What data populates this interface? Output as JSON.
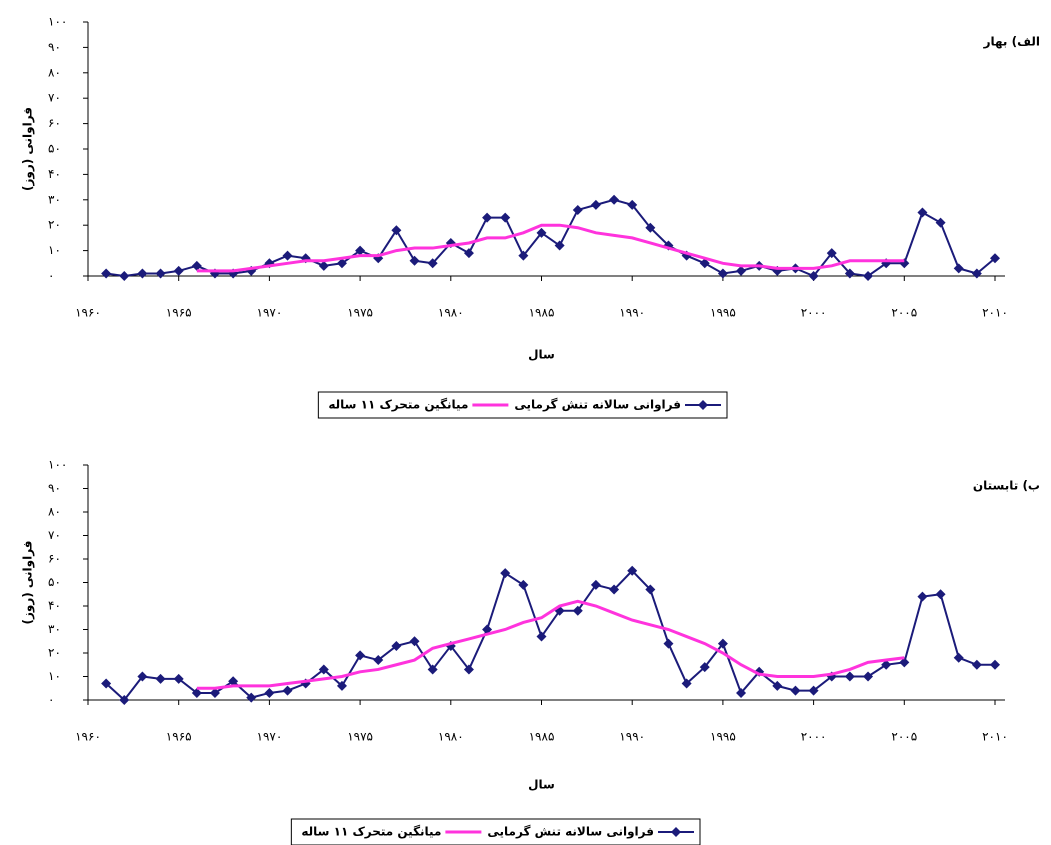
{
  "chart_data": [
    {
      "type": "line",
      "title": "الف) بهار",
      "x_label": "سال",
      "y_label": "فراوانی (روز)",
      "x": [
        1961,
        1962,
        1963,
        1964,
        1965,
        1966,
        1967,
        1968,
        1969,
        1970,
        1971,
        1972,
        1973,
        1974,
        1975,
        1976,
        1977,
        1978,
        1979,
        1980,
        1981,
        1982,
        1983,
        1984,
        1985,
        1986,
        1987,
        1988,
        1989,
        1990,
        1991,
        1992,
        1993,
        1994,
        1995,
        1996,
        1997,
        1998,
        1999,
        2000,
        2001,
        2002,
        2003,
        2004,
        2005,
        2006,
        2007,
        2008,
        2009,
        2010
      ],
      "series": [
        {
          "name": "فراوانی سالانه تنش گرمایی",
          "color": "#1b1b7a",
          "marker": "diamond",
          "values": [
            1,
            0,
            1,
            1,
            2,
            4,
            1,
            1,
            2,
            5,
            8,
            7,
            4,
            5,
            10,
            7,
            18,
            6,
            5,
            13,
            9,
            23,
            23,
            8,
            17,
            12,
            26,
            28,
            30,
            28,
            19,
            12,
            8,
            5,
            1,
            2,
            4,
            2,
            3,
            0,
            9,
            1,
            0,
            5,
            5,
            25,
            21,
            3,
            1,
            7
          ]
        },
        {
          "name": "میانگین متحرک ۱۱ ساله",
          "color": "#ff33dd",
          "values": [
            null,
            null,
            null,
            null,
            null,
            2,
            2,
            2,
            3,
            4,
            5,
            6,
            6,
            7,
            8,
            8,
            10,
            11,
            11,
            12,
            13,
            15,
            15,
            17,
            20,
            20,
            19,
            17,
            16,
            15,
            13,
            11,
            9,
            7,
            5,
            4,
            4,
            3,
            3,
            3,
            4,
            6,
            6,
            6,
            6,
            null,
            null,
            null,
            null,
            null
          ]
        }
      ],
      "xlim": [
        1960,
        2010
      ],
      "xticks": [
        {
          "value": 1960,
          "label": "۱۹۶۰"
        },
        {
          "value": 1965,
          "label": "۱۹۶۵"
        },
        {
          "value": 1970,
          "label": "۱۹۷۰"
        },
        {
          "value": 1975,
          "label": "۱۹۷۵"
        },
        {
          "value": 1980,
          "label": "۱۹۸۰"
        },
        {
          "value": 1985,
          "label": "۱۹۸۵"
        },
        {
          "value": 1990,
          "label": "۱۹۹۰"
        },
        {
          "value": 1995,
          "label": "۱۹۹۵"
        },
        {
          "value": 2000,
          "label": "۲۰۰۰"
        },
        {
          "value": 2005,
          "label": "۲۰۰۵"
        },
        {
          "value": 2010,
          "label": "۲۰۱۰"
        }
      ],
      "ylim": [
        0,
        100
      ],
      "yticks": [
        {
          "value": 0,
          "label": "۰"
        },
        {
          "value": 10,
          "label": "۱۰"
        },
        {
          "value": 20,
          "label": "۲۰"
        },
        {
          "value": 30,
          "label": "۳۰"
        },
        {
          "value": 40,
          "label": "۴۰"
        },
        {
          "value": 50,
          "label": "۵۰"
        },
        {
          "value": 60,
          "label": "۶۰"
        },
        {
          "value": 70,
          "label": "۷۰"
        },
        {
          "value": 80,
          "label": "۸۰"
        },
        {
          "value": 90,
          "label": "۹۰"
        },
        {
          "value": 100,
          "label": "۱۰۰"
        }
      ]
    },
    {
      "type": "line",
      "title": "ب) تابستان",
      "x_label": "سال",
      "y_label": "فراوانی (روز)",
      "x": [
        1961,
        1962,
        1963,
        1964,
        1965,
        1966,
        1967,
        1968,
        1969,
        1970,
        1971,
        1972,
        1973,
        1974,
        1975,
        1976,
        1977,
        1978,
        1979,
        1980,
        1981,
        1982,
        1983,
        1984,
        1985,
        1986,
        1987,
        1988,
        1989,
        1990,
        1991,
        1992,
        1993,
        1994,
        1995,
        1996,
        1997,
        1998,
        1999,
        2000,
        2001,
        2002,
        2003,
        2004,
        2005,
        2006,
        2007,
        2008,
        2009,
        2010
      ],
      "series": [
        {
          "name": "فراوانی سالانه تنش گرمایی",
          "color": "#1b1b7a",
          "marker": "diamond",
          "values": [
            7,
            0,
            10,
            9,
            9,
            3,
            3,
            8,
            1,
            3,
            4,
            7,
            13,
            6,
            19,
            17,
            23,
            25,
            13,
            23,
            13,
            30,
            54,
            49,
            27,
            38,
            38,
            49,
            47,
            55,
            47,
            24,
            7,
            14,
            24,
            3,
            12,
            6,
            4,
            4,
            10,
            10,
            10,
            15,
            16,
            44,
            45,
            18,
            15,
            15
          ]
        },
        {
          "name": "میانگین متحرک ۱۱ ساله",
          "color": "#ff33dd",
          "values": [
            null,
            null,
            null,
            null,
            null,
            5,
            5,
            6,
            6,
            6,
            7,
            8,
            9,
            10,
            12,
            13,
            15,
            17,
            22,
            24,
            26,
            28,
            30,
            33,
            35,
            40,
            42,
            40,
            37,
            34,
            32,
            30,
            27,
            24,
            20,
            15,
            11,
            10,
            10,
            10,
            11,
            13,
            16,
            17,
            18,
            null,
            null,
            null,
            null,
            null
          ]
        }
      ],
      "xlim": [
        1960,
        2010
      ],
      "xticks": [
        {
          "value": 1960,
          "label": "۱۹۶۰"
        },
        {
          "value": 1965,
          "label": "۱۹۶۵"
        },
        {
          "value": 1970,
          "label": "۱۹۷۰"
        },
        {
          "value": 1975,
          "label": "۱۹۷۵"
        },
        {
          "value": 1980,
          "label": "۱۹۸۰"
        },
        {
          "value": 1985,
          "label": "۱۹۸۵"
        },
        {
          "value": 1990,
          "label": "۱۹۹۰"
        },
        {
          "value": 1995,
          "label": "۱۹۹۵"
        },
        {
          "value": 2000,
          "label": "۲۰۰۰"
        },
        {
          "value": 2005,
          "label": "۲۰۰۵"
        },
        {
          "value": 2010,
          "label": "۲۰۱۰"
        }
      ],
      "ylim": [
        0,
        100
      ],
      "yticks": [
        {
          "value": 0,
          "label": "۰"
        },
        {
          "value": 10,
          "label": "۱۰"
        },
        {
          "value": 20,
          "label": "۲۰"
        },
        {
          "value": 30,
          "label": "۳۰"
        },
        {
          "value": 40,
          "label": "۴۰"
        },
        {
          "value": 50,
          "label": "۵۰"
        },
        {
          "value": 60,
          "label": "۶۰"
        },
        {
          "value": 70,
          "label": "۷۰"
        },
        {
          "value": 80,
          "label": "۸۰"
        },
        {
          "value": 90,
          "label": "۹۰"
        },
        {
          "value": 100,
          "label": "۱۰۰"
        }
      ]
    }
  ]
}
